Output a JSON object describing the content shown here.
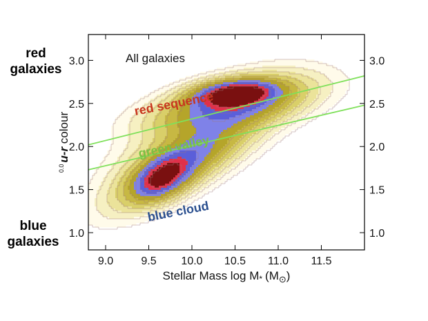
{
  "side_labels": {
    "red": [
      "red",
      "galaxies"
    ],
    "blue": [
      "blue",
      "galaxies"
    ]
  },
  "chart_data": {
    "type": "contour",
    "title": "All galaxies",
    "xlabel": {
      "main": "Stellar Mass log M",
      "sub": "*",
      "unit": "(M",
      "sun": "⊙",
      "close": ")"
    },
    "ylabel": {
      "prefix": "0.0",
      "var": "u-r",
      "rest": " colour"
    },
    "xlim": [
      8.8,
      12.0
    ],
    "ylim": [
      0.8,
      3.3
    ],
    "xticks": [
      9.0,
      9.5,
      10.0,
      10.5,
      11.0,
      11.5
    ],
    "yticks": [
      1.0,
      1.5,
      2.0,
      2.5,
      3.0
    ],
    "tick_labels_x": [
      "9.0",
      "9.5",
      "10.0",
      "10.5",
      "11.0",
      "11.5"
    ],
    "tick_labels_y": [
      "1.0",
      "1.5",
      "2.0",
      "2.5",
      "3.0"
    ],
    "grid": false,
    "right_axis_labels": true,
    "annotations": [
      {
        "text": "red sequence",
        "x": 9.8,
        "y": 2.45,
        "angle": -11,
        "color": "#c8361e"
      },
      {
        "text": "green valley",
        "x": 9.8,
        "y": 1.95,
        "angle": -11,
        "color": "#7ac143"
      },
      {
        "text": "blue cloud",
        "x": 9.85,
        "y": 1.2,
        "angle": -11,
        "color": "#2a4f8f"
      }
    ],
    "valley_lines": [
      {
        "x": [
          8.8,
          12.0
        ],
        "y": [
          2.02,
          2.82
        ],
        "color": "#7fe05a"
      },
      {
        "x": [
          8.8,
          12.0
        ],
        "y": [
          1.73,
          2.48
        ],
        "color": "#7fe05a"
      }
    ],
    "components": [
      {
        "name": "red sequence peak",
        "x": 10.5,
        "y": 2.62,
        "sx": 0.28,
        "sy": 0.09,
        "rho": 0.25,
        "weight": 1.0
      },
      {
        "name": "red sequence body",
        "x": 10.45,
        "y": 2.48,
        "sx": 0.5,
        "sy": 0.18,
        "rho": 0.5,
        "weight": 0.55
      },
      {
        "name": "blue cloud peak",
        "x": 9.65,
        "y": 1.63,
        "sx": 0.2,
        "sy": 0.15,
        "rho": 0.45,
        "weight": 0.72
      },
      {
        "name": "blue cloud body",
        "x": 9.85,
        "y": 1.8,
        "sx": 0.42,
        "sy": 0.28,
        "rho": 0.75,
        "weight": 0.45
      },
      {
        "name": "bridge",
        "x": 10.15,
        "y": 2.15,
        "sx": 0.55,
        "sy": 0.35,
        "rho": 0.7,
        "weight": 0.2
      }
    ],
    "contour_levels": [
      0.015,
      0.04,
      0.08,
      0.14,
      0.22,
      0.32,
      0.45,
      0.6,
      0.75,
      0.9
    ],
    "contour_colors": [
      "#fffbea",
      "#f6f0c2",
      "#ebe39a",
      "#d9cf69",
      "#c7b843",
      "#b5a52a",
      "#7f82e8",
      "#5b5fd9",
      "#e0304a",
      "#7a1010"
    ],
    "contour_line_color": "#a07a7a"
  }
}
